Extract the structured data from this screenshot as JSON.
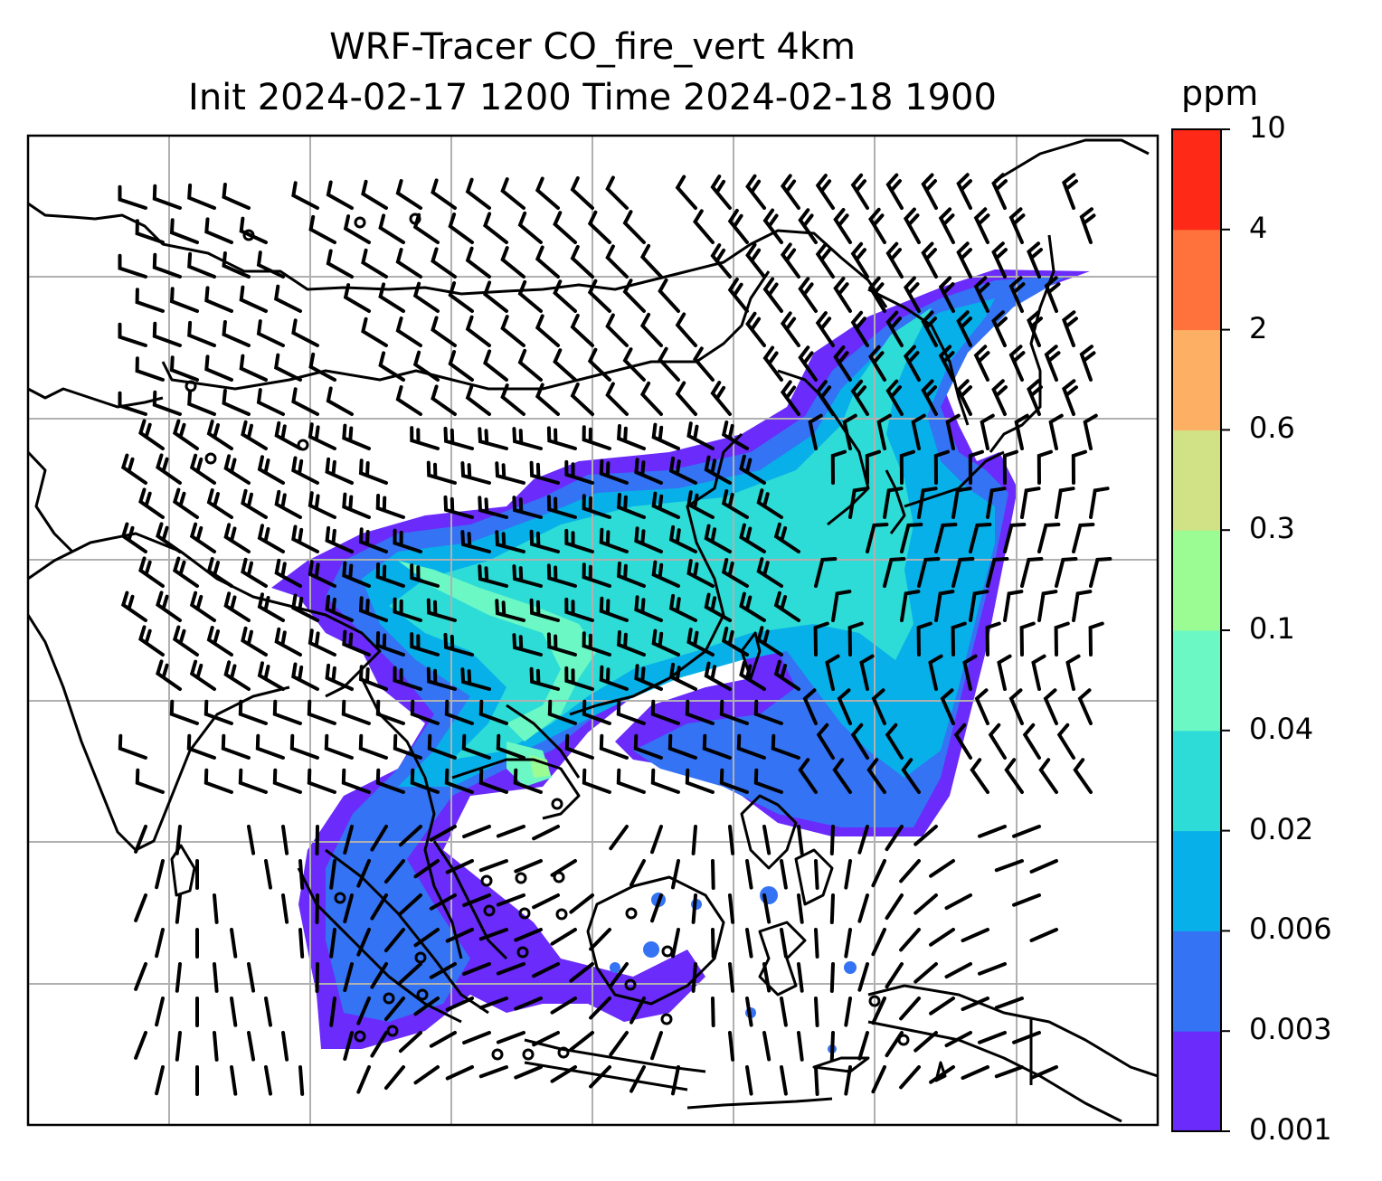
{
  "title": {
    "line1": "WRF-Tracer CO_fire_vert 4km",
    "line2": "Init 2024-02-17 1200 Time 2024-02-18 1900"
  },
  "colorbar": {
    "unit": "ppm",
    "levels": [
      "0.001",
      "0.003",
      "0.006",
      "0.02",
      "0.04",
      "0.1",
      "0.3",
      "0.6",
      "2",
      "4",
      "10"
    ],
    "colors": [
      "#6a2bfb",
      "#3473f4",
      "#07b0e8",
      "#2ddcd6",
      "#6bf8c4",
      "#9bfc94",
      "#d1e286",
      "#fdb063",
      "#ff723c",
      "#ff2918"
    ]
  },
  "map": {
    "gridlines": true,
    "gridline_color": "#b0b0b0",
    "coastline_color": "#000000",
    "wind_barbs": true,
    "calm_markers": true
  }
}
